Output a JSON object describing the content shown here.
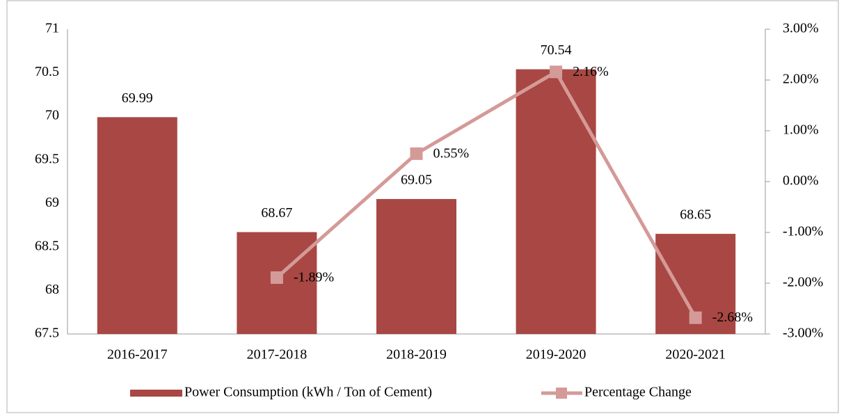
{
  "chart_data": {
    "type": "bar",
    "categories": [
      "2016-2017",
      "2017-2018",
      "2018-2019",
      "2019-2020",
      "2020-2021"
    ],
    "series": [
      {
        "name": "Power Consumption (kWh / Ton of Cement)",
        "type": "bar",
        "color": "#a84743",
        "values": [
          69.99,
          68.67,
          69.05,
          70.54,
          68.65
        ]
      },
      {
        "name": "Percentage Change",
        "type": "line",
        "axis": "y2",
        "color": "#d49a98",
        "values": [
          null,
          -1.89,
          0.55,
          2.16,
          -2.68
        ],
        "value_labels": [
          null,
          "-1.89%",
          "0.55%",
          "2.16%",
          "-2.68%"
        ]
      }
    ],
    "ylim": [
      67.5,
      71
    ],
    "yticks": [
      67.5,
      68,
      68.5,
      69,
      69.5,
      70,
      70.5,
      71
    ],
    "y2lim": [
      -3,
      3
    ],
    "y2ticks": [
      {
        "value": -3,
        "label": "-3.00%"
      },
      {
        "value": -2,
        "label": "-2.00%"
      },
      {
        "value": -1,
        "label": "-1.00%"
      },
      {
        "value": 0,
        "label": "0.00%"
      },
      {
        "value": 1,
        "label": "1.00%"
      },
      {
        "value": 2,
        "label": "2.00%"
      },
      {
        "value": 3,
        "label": "3.00%"
      }
    ],
    "legend": "bottom"
  }
}
